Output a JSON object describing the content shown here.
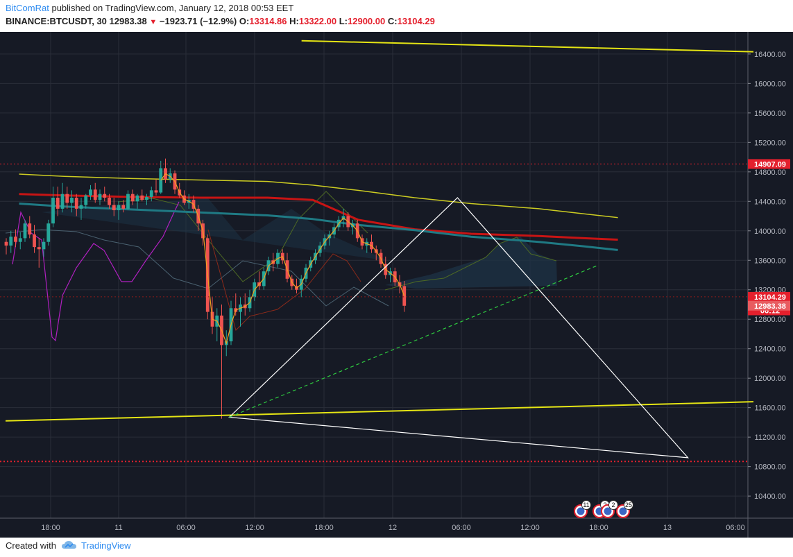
{
  "header": {
    "author": "BitComRat",
    "published": " published on TradingView.com, January 12, 2018 00:53 EET",
    "symbol": "BINANCE:BTCUSDT, 30",
    "last": "12983.38",
    "change": "−1923.71 (−12.9%)",
    "o_label": "O:",
    "o": "13314.86",
    "h_label": "H:",
    "h": "13322.00",
    "l_label": "L:",
    "l": "12900.00",
    "c_label": "C:",
    "c": "13104.29"
  },
  "footer": {
    "created_with": "Created with",
    "brand": "TradingView"
  },
  "colors": {
    "background": "#161a25",
    "grid": "#2a2e39",
    "up": "#26a69a",
    "down": "#ef5350",
    "yellow": "#e5e514",
    "white": "#ffffff",
    "green_dashed": "#2ecc40",
    "red_level": "#e4202d",
    "ma_red": "#c81414",
    "ma_teal": "#1f7a84",
    "ma_yellow": "#cccc22",
    "purple": "#b020c0",
    "olive": "#4e6a24",
    "cloud": "#1e3346"
  },
  "chart_data": {
    "type": "candlestick",
    "symbol": "BINANCE:BTCUSDT, 30",
    "ylim": [
      10100,
      16700
    ],
    "y_ticks": [
      "10400.00",
      "10800.00",
      "11200.00",
      "11600.00",
      "12000.00",
      "12400.00",
      "12800.00",
      "13200.00",
      "13600.00",
      "14000.00",
      "14400.00",
      "14800.00",
      "15200.00",
      "15600.00",
      "16000.00",
      "16400.00"
    ],
    "x_ticks": [
      "18:00",
      "11",
      "06:00",
      "12:00",
      "18:00",
      "12",
      "06:00",
      "12:00",
      "18:00",
      "13",
      "06:00"
    ],
    "price_labels": [
      {
        "text": "14907.09",
        "value": 14907.09,
        "color": "#e4202d"
      },
      {
        "text": "13104.29",
        "value": 13104.29,
        "color": "#e4202d"
      },
      {
        "text": "06:12",
        "value": 12920,
        "color": "#e4202d"
      },
      {
        "text": "12983.38",
        "value": 12983.38,
        "color": "#e85c60"
      }
    ],
    "horizontal_levels": [
      {
        "value": 14907.09,
        "style": "dotted",
        "color": "#e4202d"
      },
      {
        "value": 13104.29,
        "style": "dotted",
        "color": "#8b1a1a"
      },
      {
        "value": 10870,
        "style": "dotted",
        "color": "#e4202d"
      }
    ],
    "candles": [
      [
        13850,
        13900,
        13680,
        13800
      ],
      [
        13800,
        14000,
        13700,
        13920
      ],
      [
        13920,
        14020,
        13780,
        13850
      ],
      [
        13850,
        13980,
        13750,
        13900
      ],
      [
        13900,
        14150,
        13850,
        14100
      ],
      [
        14100,
        14200,
        13900,
        13950
      ],
      [
        13950,
        14080,
        13700,
        13780
      ],
      [
        13780,
        13900,
        13500,
        13750
      ],
      [
        13750,
        13900,
        13650,
        13850
      ],
      [
        13850,
        14150,
        13800,
        14100
      ],
      [
        14100,
        14600,
        14050,
        14450
      ],
      [
        14450,
        14600,
        14200,
        14300
      ],
      [
        14300,
        14650,
        14250,
        14500
      ],
      [
        14500,
        14600,
        14300,
        14380
      ],
      [
        14380,
        14550,
        14250,
        14450
      ],
      [
        14450,
        14500,
        14200,
        14300
      ],
      [
        14300,
        14450,
        14150,
        14350
      ],
      [
        14350,
        14500,
        14300,
        14480
      ],
      [
        14480,
        14620,
        14420,
        14560
      ],
      [
        14560,
        14650,
        14380,
        14420
      ],
      [
        14420,
        14560,
        14350,
        14500
      ],
      [
        14500,
        14600,
        14400,
        14450
      ],
      [
        14450,
        14500,
        14300,
        14350
      ],
      [
        14350,
        14450,
        14200,
        14280
      ],
      [
        14280,
        14400,
        14150,
        14350
      ],
      [
        14350,
        14420,
        14250,
        14300
      ],
      [
        14300,
        14550,
        14280,
        14500
      ],
      [
        14500,
        14560,
        14350,
        14400
      ],
      [
        14400,
        14500,
        14300,
        14480
      ],
      [
        14480,
        14560,
        14400,
        14420
      ],
      [
        14420,
        14500,
        14350,
        14460
      ],
      [
        14460,
        14600,
        14400,
        14550
      ],
      [
        14550,
        14700,
        14480,
        14520
      ],
      [
        14520,
        14950,
        14500,
        14850
      ],
      [
        14850,
        14980,
        14650,
        14700
      ],
      [
        14700,
        14850,
        14650,
        14780
      ],
      [
        14780,
        14820,
        14500,
        14560
      ],
      [
        14560,
        14650,
        14450,
        14480
      ],
      [
        14480,
        14550,
        14350,
        14380
      ],
      [
        14380,
        14500,
        14300,
        14420
      ],
      [
        14420,
        14480,
        14250,
        14300
      ],
      [
        14300,
        14350,
        14000,
        14100
      ],
      [
        14100,
        14150,
        13800,
        13900
      ],
      [
        13900,
        13950,
        12800,
        12900
      ],
      [
        12900,
        13100,
        12600,
        12700
      ],
      [
        12700,
        12950,
        12500,
        12850
      ],
      [
        12850,
        13000,
        11450,
        12450
      ],
      [
        12450,
        12650,
        12300,
        12500
      ],
      [
        12500,
        13050,
        12450,
        12950
      ],
      [
        12950,
        13150,
        12850,
        12900
      ],
      [
        12900,
        13100,
        12700,
        13000
      ],
      [
        13000,
        13150,
        12850,
        12950
      ],
      [
        12950,
        13200,
        12900,
        13100
      ],
      [
        13100,
        13350,
        13050,
        13300
      ],
      [
        13300,
        13450,
        13200,
        13250
      ],
      [
        13250,
        13500,
        13200,
        13450
      ],
      [
        13450,
        13650,
        13400,
        13600
      ],
      [
        13600,
        13700,
        13450,
        13550
      ],
      [
        13550,
        13750,
        13500,
        13700
      ],
      [
        13700,
        13750,
        13550,
        13600
      ],
      [
        13600,
        13700,
        13300,
        13350
      ],
      [
        13350,
        13400,
        13200,
        13250
      ],
      [
        13250,
        13350,
        13150,
        13200
      ],
      [
        13200,
        13400,
        13100,
        13350
      ],
      [
        13350,
        13550,
        13300,
        13500
      ],
      [
        13500,
        13650,
        13450,
        13600
      ],
      [
        13600,
        13750,
        13550,
        13700
      ],
      [
        13700,
        13850,
        13650,
        13800
      ],
      [
        13800,
        13950,
        13750,
        13900
      ],
      [
        13900,
        14000,
        13800,
        13950
      ],
      [
        13950,
        14100,
        13900,
        14050
      ],
      [
        14050,
        14200,
        14000,
        14150
      ],
      [
        14150,
        14300,
        14050,
        14200
      ],
      [
        14200,
        14250,
        14000,
        14050
      ],
      [
        14050,
        14150,
        13950,
        14100
      ],
      [
        14100,
        14150,
        13850,
        13900
      ],
      [
        13900,
        13950,
        13750,
        13800
      ],
      [
        13800,
        13900,
        13700,
        13850
      ],
      [
        13850,
        13950,
        13700,
        13750
      ],
      [
        13750,
        13800,
        13600,
        13700
      ],
      [
        13700,
        13750,
        13500,
        13550
      ],
      [
        13550,
        13650,
        13350,
        13400
      ],
      [
        13400,
        13500,
        13300,
        13450
      ],
      [
        13450,
        13500,
        13250,
        13300
      ],
      [
        13300,
        13400,
        13150,
        13250
      ],
      [
        13250,
        13320,
        12900,
        12983
      ]
    ],
    "moving_averages": [
      {
        "name": "red",
        "points": [
          [
            15300,
            14500
          ],
          [
            15340,
            14480
          ],
          [
            15400,
            14460
          ],
          [
            15460,
            14450
          ],
          [
            15520,
            14450
          ],
          [
            15560,
            14420
          ],
          [
            15600,
            14150
          ],
          [
            15650,
            14020
          ],
          [
            15700,
            13960
          ],
          [
            15760,
            13930
          ],
          [
            15800,
            13900
          ],
          [
            15830,
            13880
          ]
        ]
      },
      {
        "name": "teal",
        "points": [
          [
            15300,
            14370
          ],
          [
            15340,
            14330
          ],
          [
            15400,
            14290
          ],
          [
            15460,
            14250
          ],
          [
            15520,
            14210
          ],
          [
            15560,
            14160
          ],
          [
            15600,
            14080
          ],
          [
            15650,
            14010
          ],
          [
            15700,
            13920
          ],
          [
            15760,
            13850
          ],
          [
            15800,
            13790
          ],
          [
            15830,
            13740
          ]
        ]
      },
      {
        "name": "yellow",
        "points": [
          [
            15300,
            14770
          ],
          [
            15340,
            14740
          ],
          [
            15400,
            14710
          ],
          [
            15460,
            14690
          ],
          [
            15520,
            14670
          ],
          [
            15560,
            14620
          ],
          [
            15600,
            14550
          ],
          [
            15650,
            14450
          ],
          [
            15700,
            14370
          ],
          [
            15760,
            14300
          ],
          [
            15800,
            14230
          ],
          [
            15830,
            14180
          ]
        ]
      }
    ],
    "drawings": {
      "triangle": [
        [
          15486,
          11470
        ],
        [
          15688,
          14450
        ],
        [
          15892,
          10920
        ]
      ],
      "yellow_lines": [
        [
          [
            15288,
            11420
          ],
          [
            15950,
            11680
          ]
        ],
        [
          [
            15550,
            16580
          ],
          [
            15950,
            16430
          ]
        ]
      ],
      "green_dashed": [
        [
          15486,
          11470
        ],
        [
          15812,
          13530
        ]
      ]
    }
  }
}
